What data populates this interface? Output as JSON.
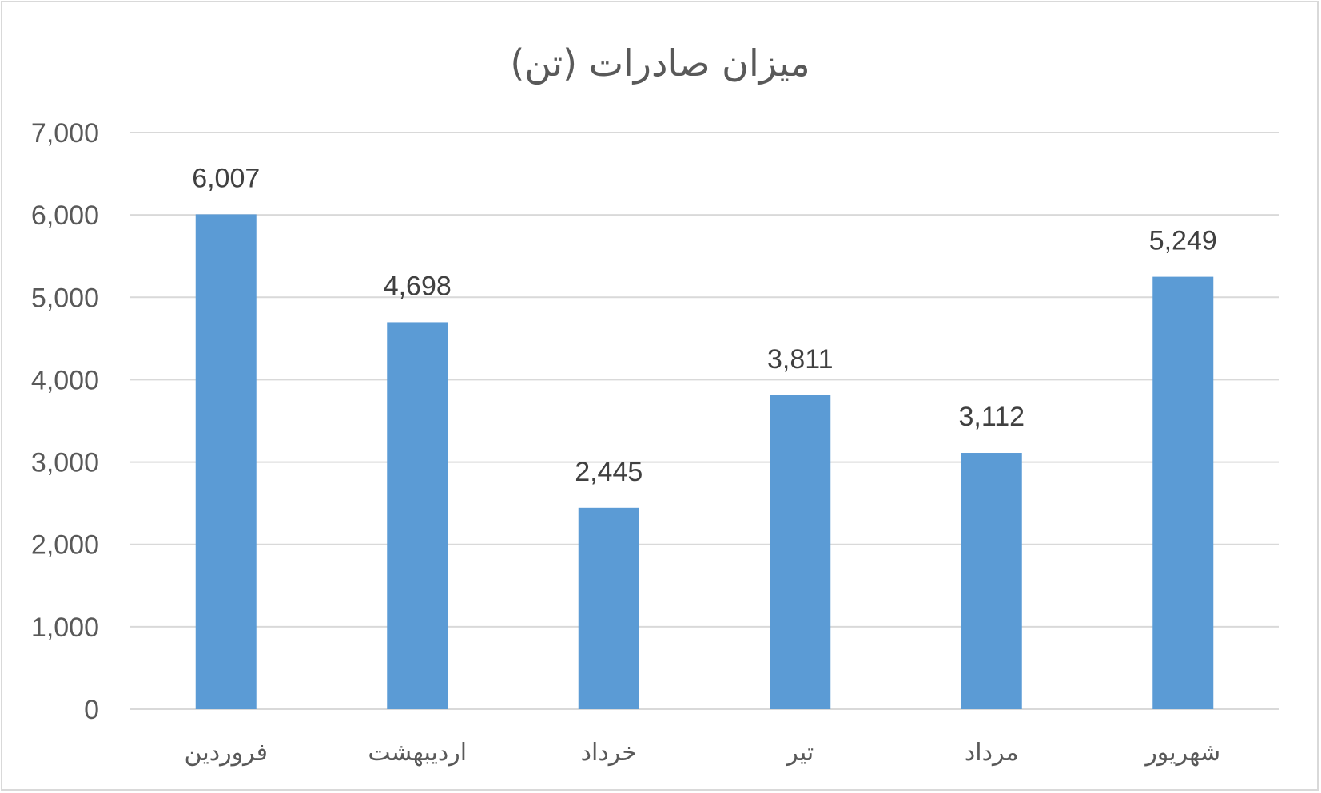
{
  "chart_data": {
    "type": "bar",
    "title": "میزان صادرات (تن)",
    "xlabel": "",
    "ylabel": "",
    "categories": [
      "فروردین",
      "اردیبهشت",
      "خرداد",
      "تیر",
      "مرداد",
      "شهریور"
    ],
    "values": [
      6007,
      4698,
      2445,
      3811,
      3112,
      5249
    ],
    "data_labels": [
      "6,007",
      "4,698",
      "2,445",
      "3,811",
      "3,112",
      "5,249"
    ],
    "ylim": [
      0,
      7000
    ],
    "yticks": [
      0,
      1000,
      2000,
      3000,
      4000,
      5000,
      6000,
      7000
    ],
    "ytick_labels": [
      "0",
      "1,000",
      "2,000",
      "3,000",
      "4,000",
      "5,000",
      "6,000",
      "7,000"
    ],
    "grid": true,
    "legend": "none",
    "colors": {
      "bar": "#5b9bd5",
      "grid": "#d9d9d9",
      "axis": "#d9d9d9",
      "text": "#595959",
      "data_label": "#404040"
    }
  }
}
